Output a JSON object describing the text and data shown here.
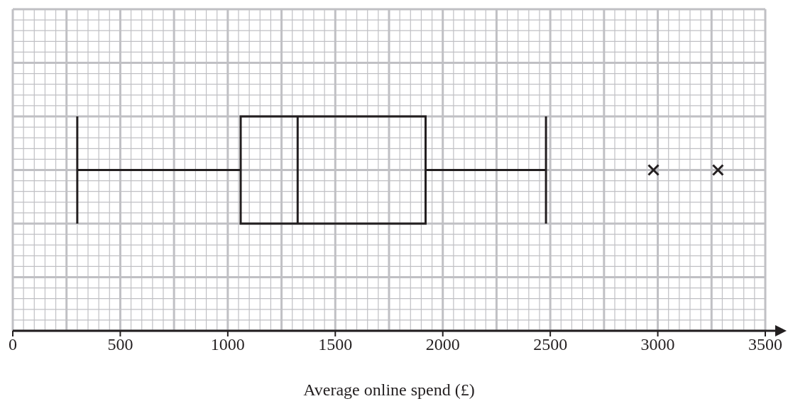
{
  "chart_data": {
    "type": "box",
    "orientation": "horizontal",
    "xlabel": "Average online spend (£)",
    "categories": [
      null
    ],
    "boxes": [
      {
        "low": 300,
        "q1": 1060,
        "median": 1325,
        "q3": 1920,
        "high": 2480,
        "outliers": [
          2980,
          3280
        ]
      }
    ],
    "color": "#231f20",
    "xlim": [
      0,
      3500
    ],
    "xticks": [
      0,
      500,
      1000,
      1500,
      2000,
      2500,
      3000,
      3500
    ],
    "grid": true,
    "marker": "cross"
  }
}
